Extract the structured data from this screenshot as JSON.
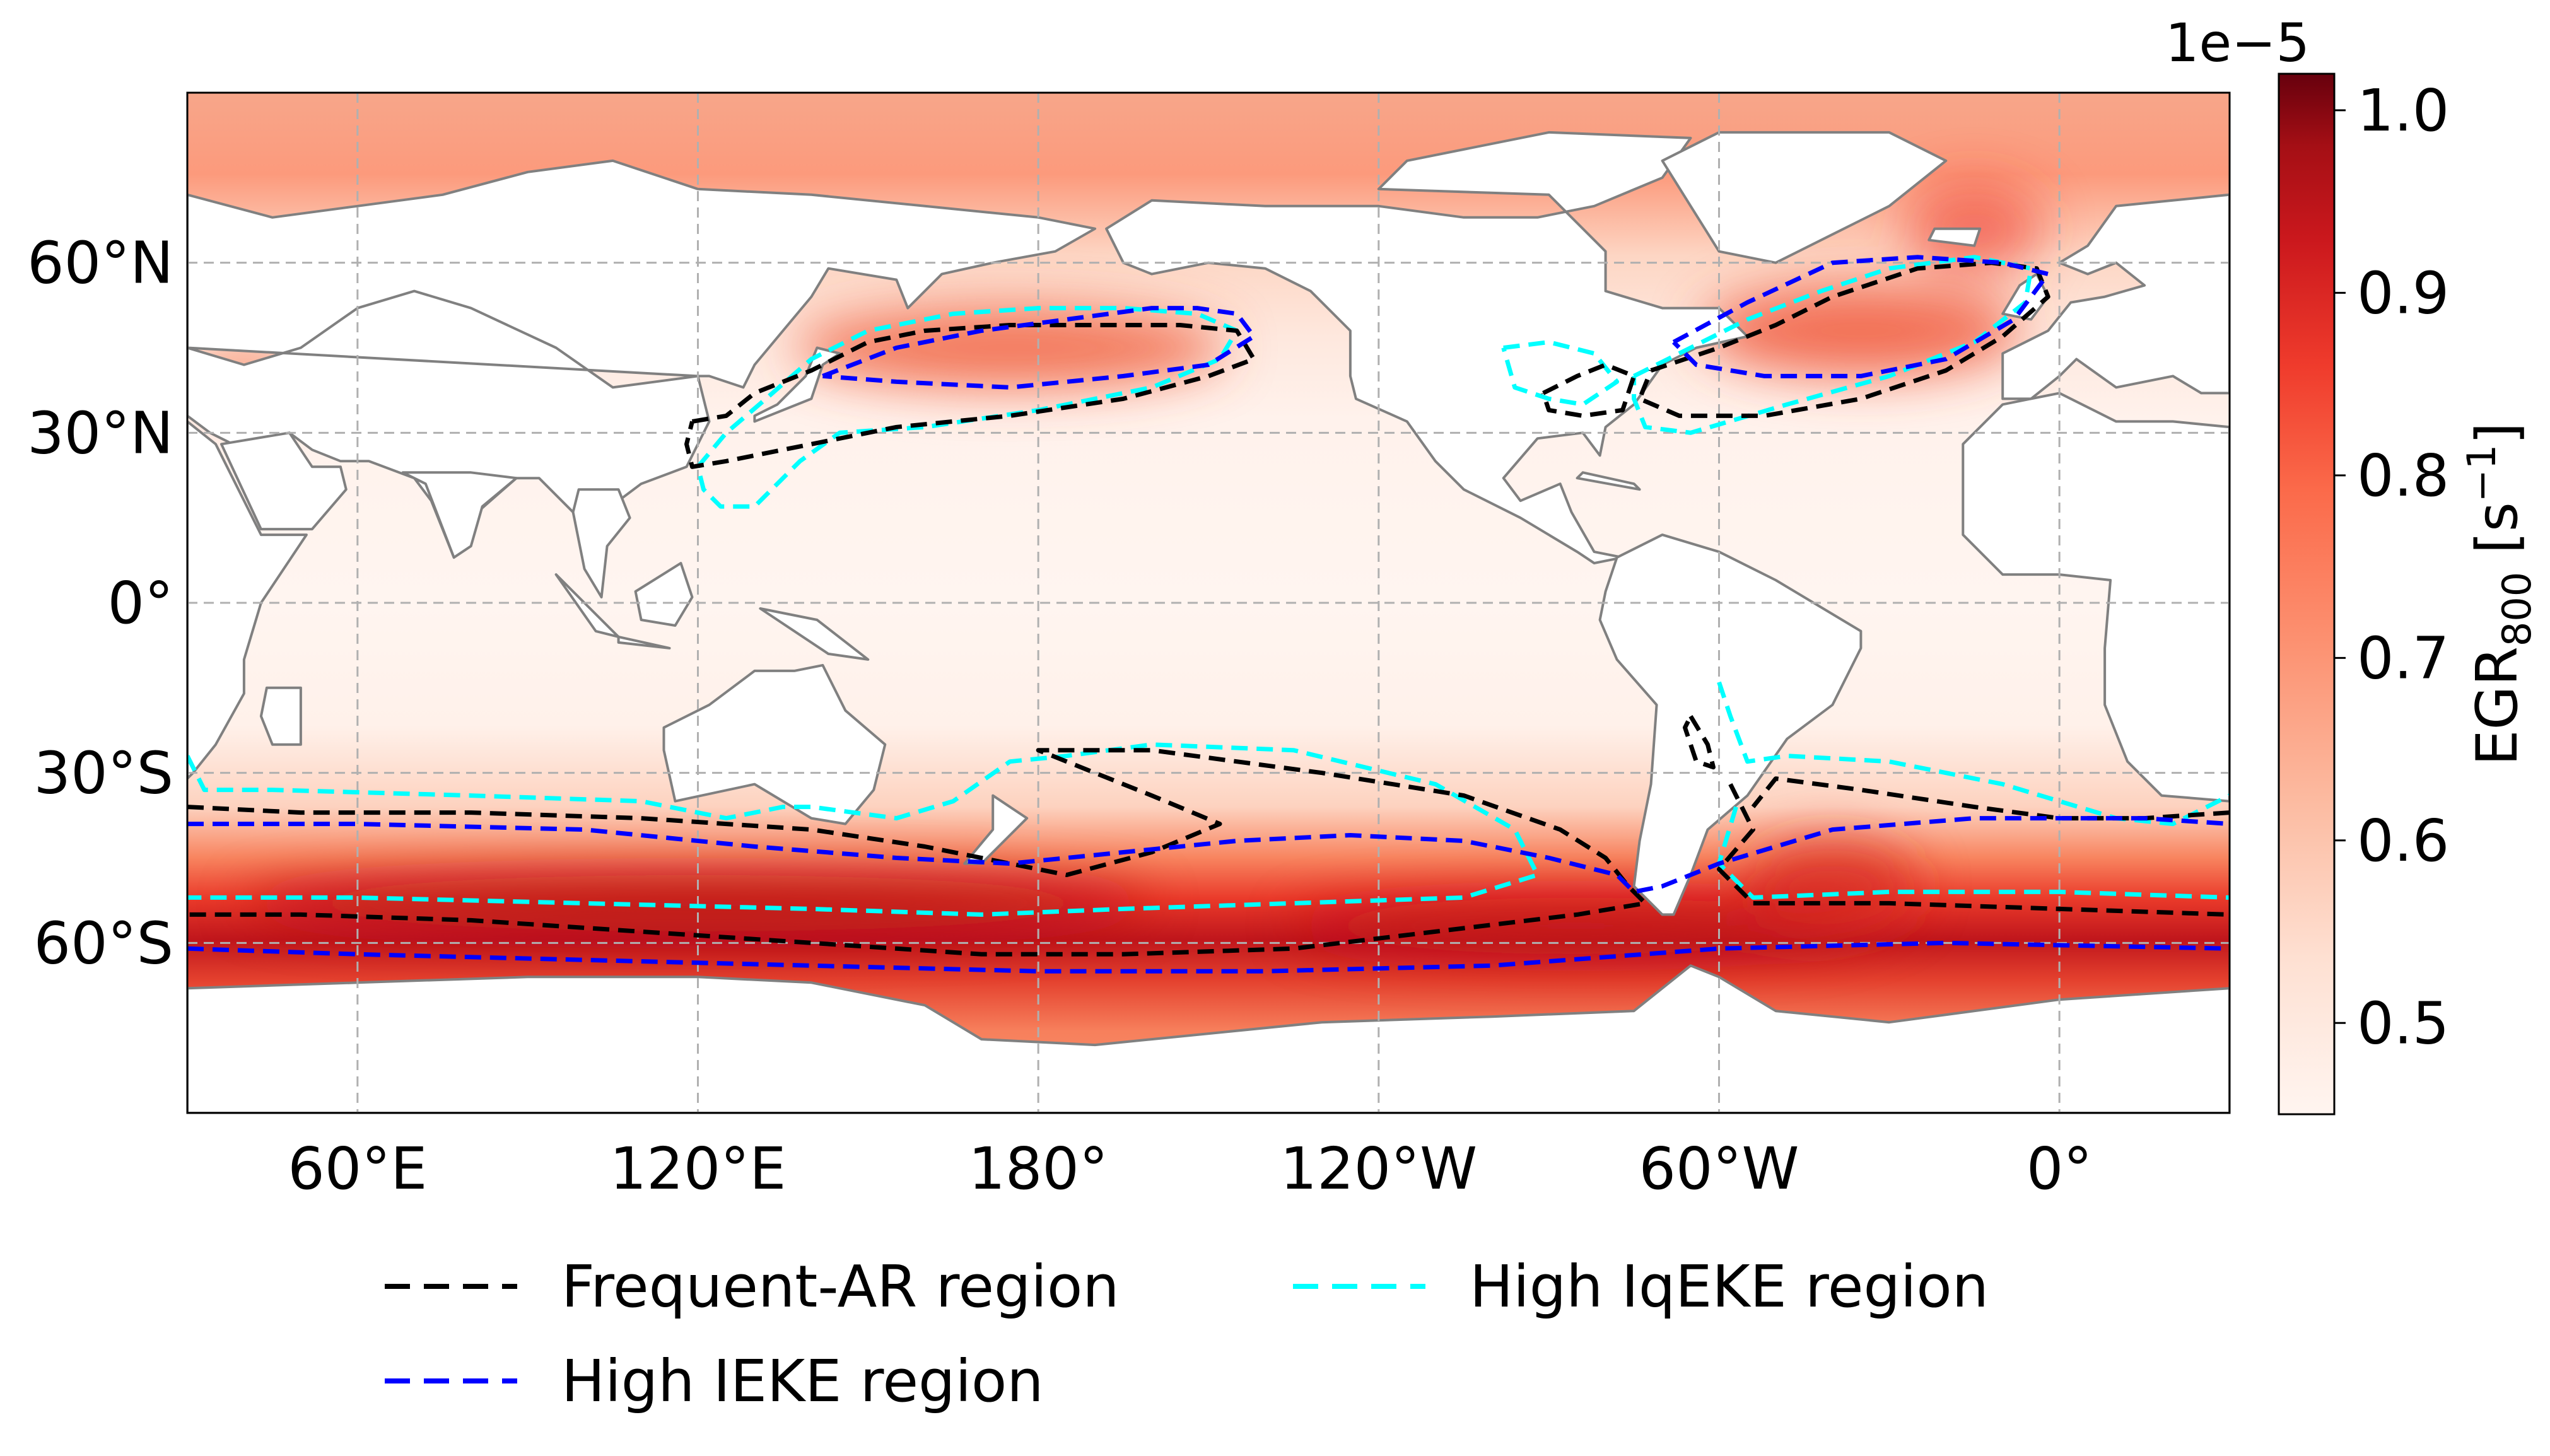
{
  "map": {
    "projection": "PlateCarree",
    "central_longitude": 150,
    "lon_extent": [
      30,
      390
    ],
    "lat_extent": [
      -90,
      90
    ],
    "x_ticks": [
      {
        "lon": 60,
        "label": "60°E"
      },
      {
        "lon": 120,
        "label": "120°E"
      },
      {
        "lon": 180,
        "label": "180°"
      },
      {
        "lon": 240,
        "label": "120°W"
      },
      {
        "lon": 300,
        "label": "60°W"
      },
      {
        "lon": 360,
        "label": "0°"
      }
    ],
    "y_ticks": [
      {
        "lat": 60,
        "label": "60°N"
      },
      {
        "lat": 30,
        "label": "30°N"
      },
      {
        "lat": 0,
        "label": "0°"
      },
      {
        "lat": -30,
        "label": "30°S"
      },
      {
        "lat": -60,
        "label": "60°S"
      }
    ],
    "grid": true,
    "colors": {
      "land": "#ffffff",
      "coastline": "#808080",
      "grid": "#b0b0b0"
    }
  },
  "colorbar": {
    "label_main": "EGR",
    "label_sub": "800",
    "label_units": " [s",
    "label_exp": "−1",
    "label_close": "]",
    "offset_text": "1e−5",
    "cmap": "Reds",
    "range": [
      0.45,
      1.02
    ],
    "ticks": [
      {
        "value": 0.5,
        "label": "0.5"
      },
      {
        "value": 0.6,
        "label": "0.6"
      },
      {
        "value": 0.7,
        "label": "0.7"
      },
      {
        "value": 0.8,
        "label": "0.8"
      },
      {
        "value": 0.9,
        "label": "0.9"
      },
      {
        "value": 1.0,
        "label": "1.0"
      }
    ]
  },
  "legend": {
    "placement": "below",
    "entries": [
      {
        "name": "Frequent-AR region",
        "color": "#000000"
      },
      {
        "name": "High IEKE region",
        "color": "#0000ff"
      },
      {
        "name": "High IqEKE region",
        "color": "#00ffff"
      }
    ]
  },
  "regions": {
    "frequent_ar": [
      [
        [
          119,
          32
        ],
        [
          125,
          33
        ],
        [
          130,
          37
        ],
        [
          140,
          41
        ],
        [
          150,
          46
        ],
        [
          160,
          48
        ],
        [
          175,
          49
        ],
        [
          190,
          49
        ],
        [
          205,
          49
        ],
        [
          215,
          48
        ],
        [
          218,
          43
        ],
        [
          210,
          40
        ],
        [
          195,
          36
        ],
        [
          175,
          33
        ],
        [
          155,
          31
        ],
        [
          140,
          28
        ],
        [
          125,
          25
        ],
        [
          119,
          24
        ],
        [
          118,
          28
        ],
        [
          119,
          32
        ]
      ],
      [
        [
          288,
          41
        ],
        [
          300,
          45
        ],
        [
          310,
          49
        ],
        [
          320,
          54
        ],
        [
          335,
          59
        ],
        [
          348,
          60
        ],
        [
          356,
          59
        ],
        [
          358,
          54
        ],
        [
          350,
          47
        ],
        [
          340,
          41
        ],
        [
          325,
          36
        ],
        [
          308,
          33
        ],
        [
          293,
          33
        ],
        [
          286,
          36
        ],
        [
          288,
          41
        ]
      ],
      [
        [
          269,
          37
        ],
        [
          275,
          40
        ],
        [
          280,
          42
        ],
        [
          285,
          40
        ],
        [
          283,
          34
        ],
        [
          276,
          33
        ],
        [
          270,
          34
        ],
        [
          269,
          37
        ]
      ],
      [
        [
          30,
          -36
        ],
        [
          50,
          -37
        ],
        [
          80,
          -37
        ],
        [
          110,
          -38
        ],
        [
          140,
          -40
        ],
        [
          160,
          -43
        ],
        [
          175,
          -46
        ],
        [
          185,
          -48
        ],
        [
          200,
          -44
        ],
        [
          212,
          -39
        ],
        [
          200,
          -34
        ],
        [
          190,
          -30
        ],
        [
          180,
          -26
        ],
        [
          200,
          -26
        ],
        [
          230,
          -30
        ],
        [
          255,
          -34
        ],
        [
          272,
          -40
        ],
        [
          280,
          -45
        ],
        [
          284,
          -50
        ],
        [
          287,
          -53
        ],
        [
          275,
          -55
        ],
        [
          250,
          -58
        ],
        [
          225,
          -61
        ],
        [
          195,
          -62
        ],
        [
          170,
          -62
        ],
        [
          140,
          -60
        ],
        [
          110,
          -58
        ],
        [
          80,
          -56
        ],
        [
          50,
          -55
        ],
        [
          30,
          -55
        ]
      ],
      [
        [
          302,
          -32
        ],
        [
          306,
          -40
        ],
        [
          300,
          -47
        ],
        [
          306,
          -53
        ],
        [
          330,
          -53
        ],
        [
          360,
          -54
        ],
        [
          390,
          -55
        ]
      ],
      [
        [
          390,
          -37
        ],
        [
          375,
          -38
        ],
        [
          360,
          -38
        ],
        [
          345,
          -36
        ],
        [
          325,
          -33
        ],
        [
          310,
          -31
        ],
        [
          306,
          -36
        ]
      ],
      [
        [
          295,
          -20
        ],
        [
          298,
          -25
        ],
        [
          299,
          -29
        ],
        [
          296,
          -28
        ],
        [
          294,
          -22
        ],
        [
          295,
          -20
        ]
      ]
    ],
    "high_ieke": [
      [
        [
          142,
          40
        ],
        [
          155,
          45
        ],
        [
          170,
          48
        ],
        [
          185,
          50
        ],
        [
          200,
          52
        ],
        [
          208,
          52
        ],
        [
          215,
          51
        ],
        [
          218,
          47
        ],
        [
          210,
          42
        ],
        [
          195,
          40
        ],
        [
          175,
          38
        ],
        [
          155,
          39
        ],
        [
          142,
          40
        ]
      ],
      [
        [
          292,
          46
        ],
        [
          305,
          53
        ],
        [
          320,
          60
        ],
        [
          335,
          61
        ],
        [
          350,
          60
        ],
        [
          358,
          58
        ],
        [
          352,
          50
        ],
        [
          340,
          43
        ],
        [
          325,
          40
        ],
        [
          308,
          40
        ],
        [
          296,
          42
        ],
        [
          292,
          46
        ]
      ],
      [
        [
          30,
          -39
        ],
        [
          60,
          -39
        ],
        [
          100,
          -40
        ],
        [
          130,
          -43
        ],
        [
          155,
          -45
        ],
        [
          175,
          -46
        ],
        [
          195,
          -44
        ],
        [
          215,
          -42
        ],
        [
          235,
          -41
        ],
        [
          255,
          -42
        ],
        [
          270,
          -45
        ],
        [
          282,
          -48
        ],
        [
          285,
          -51
        ],
        [
          290,
          -50
        ],
        [
          300,
          -46
        ],
        [
          320,
          -40
        ],
        [
          345,
          -38
        ],
        [
          375,
          -38
        ],
        [
          390,
          -39
        ]
      ],
      [
        [
          30,
          -61
        ],
        [
          60,
          -62
        ],
        [
          100,
          -63
        ],
        [
          140,
          -64
        ],
        [
          180,
          -65
        ],
        [
          220,
          -65
        ],
        [
          260,
          -64
        ],
        [
          300,
          -61
        ],
        [
          340,
          -60
        ],
        [
          390,
          -61
        ]
      ]
    ],
    "high_iqeke": [
      [
        [
          120,
          24
        ],
        [
          125,
          30
        ],
        [
          132,
          36
        ],
        [
          140,
          43
        ],
        [
          150,
          48
        ],
        [
          165,
          51
        ],
        [
          180,
          52
        ],
        [
          195,
          52
        ],
        [
          208,
          51
        ],
        [
          215,
          48
        ],
        [
          212,
          43
        ],
        [
          200,
          38
        ],
        [
          180,
          34
        ],
        [
          160,
          31
        ],
        [
          145,
          30
        ],
        [
          138,
          25
        ],
        [
          130,
          17
        ],
        [
          124,
          17
        ],
        [
          121,
          20
        ],
        [
          120,
          24
        ]
      ],
      [
        [
          285,
          40
        ],
        [
          295,
          45
        ],
        [
          305,
          50
        ],
        [
          318,
          55
        ],
        [
          330,
          59
        ],
        [
          345,
          61
        ],
        [
          355,
          59
        ],
        [
          354,
          53
        ],
        [
          345,
          46
        ],
        [
          330,
          40
        ],
        [
          312,
          35
        ],
        [
          295,
          30
        ],
        [
          287,
          31
        ],
        [
          285,
          36
        ],
        [
          285,
          40
        ]
      ],
      [
        [
          262,
          45
        ],
        [
          270,
          46
        ],
        [
          278,
          44
        ],
        [
          282,
          39
        ],
        [
          276,
          35
        ],
        [
          270,
          36
        ],
        [
          264,
          38
        ],
        [
          262,
          45
        ]
      ],
      [
        [
          30,
          -27
        ],
        [
          33,
          -33
        ],
        [
          45,
          -33
        ],
        [
          80,
          -34
        ],
        [
          110,
          -35
        ],
        [
          125,
          -38
        ],
        [
          135,
          -36
        ],
        [
          140,
          -36
        ],
        [
          155,
          -38
        ],
        [
          165,
          -35
        ],
        [
          175,
          -28
        ],
        [
          185,
          -27
        ],
        [
          200,
          -25
        ],
        [
          225,
          -26
        ],
        [
          250,
          -32
        ],
        [
          264,
          -40
        ],
        [
          268,
          -48
        ],
        [
          255,
          -52
        ],
        [
          225,
          -53
        ],
        [
          195,
          -54
        ],
        [
          170,
          -55
        ],
        [
          140,
          -54
        ],
        [
          100,
          -53
        ],
        [
          60,
          -52
        ],
        [
          30,
          -52
        ]
      ],
      [
        [
          300,
          -14
        ],
        [
          302,
          -20
        ],
        [
          305,
          -28
        ],
        [
          312,
          -27
        ],
        [
          330,
          -28
        ],
        [
          350,
          -32
        ],
        [
          370,
          -38
        ],
        [
          380,
          -39
        ],
        [
          390,
          -34
        ]
      ],
      [
        [
          303,
          -36
        ],
        [
          300,
          -46
        ],
        [
          306,
          -52
        ],
        [
          330,
          -51
        ],
        [
          360,
          -51
        ],
        [
          390,
          -52
        ]
      ]
    ]
  }
}
